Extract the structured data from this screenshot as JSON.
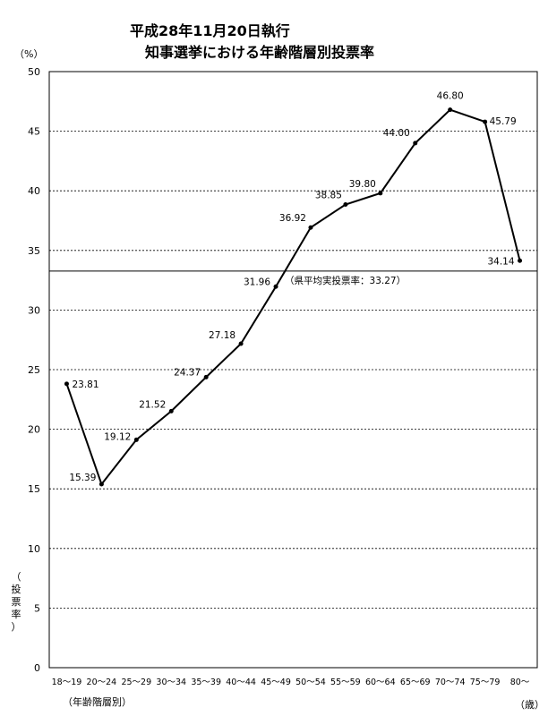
{
  "chart_data": {
    "type": "line",
    "title_lines": [
      "平成28年11月20日執行",
      "知事選挙における年齢階層別投票率"
    ],
    "y_unit": "（%）",
    "ylabel_chars": [
      "（",
      "投",
      "票",
      "率",
      "）"
    ],
    "xlabel": "（年齢階層別）",
    "x_unit": "（歳）",
    "ylim": [
      0,
      50
    ],
    "ytick_step": 5,
    "yticks": [
      "0",
      "5",
      "10",
      "15",
      "20",
      "25",
      "30",
      "35",
      "40",
      "45",
      "50"
    ],
    "grid": "horizontal-dashed",
    "categories": [
      "18～19",
      "20～24",
      "25～29",
      "30～34",
      "35～39",
      "40～44",
      "45～49",
      "50～54",
      "55～59",
      "60～64",
      "65～69",
      "70～74",
      "75～79",
      "80～"
    ],
    "values": [
      23.81,
      15.39,
      19.12,
      21.52,
      24.37,
      27.18,
      31.96,
      36.92,
      38.85,
      39.8,
      44.0,
      46.8,
      45.79,
      34.14
    ],
    "value_labels": [
      "23.81",
      "15.39",
      "19.12",
      "21.52",
      "24.37",
      "27.18",
      "31.96",
      "36.92",
      "38.85",
      "39.80",
      "44.00",
      "46.80",
      "45.79",
      "34.14"
    ],
    "reference_line": {
      "value": 33.27,
      "label": "（県平均実投票率：33.27）"
    }
  }
}
